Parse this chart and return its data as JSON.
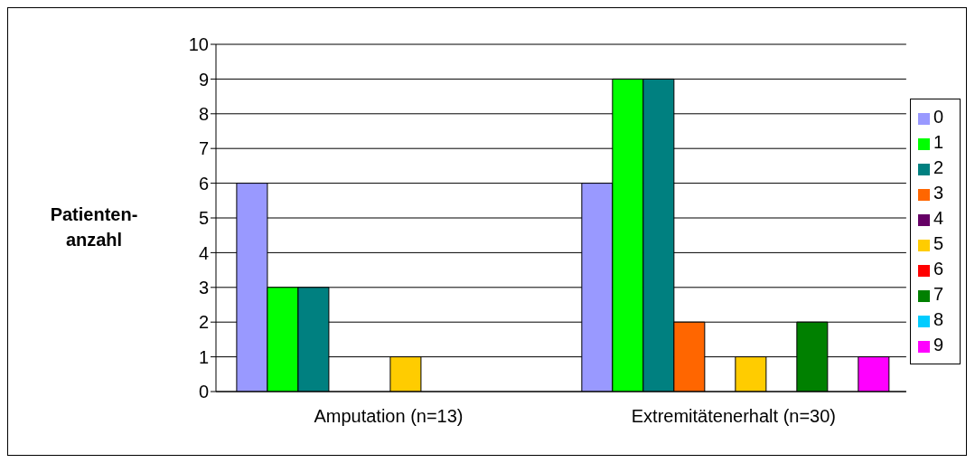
{
  "chart_data": {
    "type": "bar",
    "ylabel": "Patienten-anzahl",
    "categories": [
      "Amputation (n=13)",
      "Extremitätenerhalt (n=30)"
    ],
    "series": [
      {
        "name": "0",
        "color": "#9999ff",
        "values": [
          6,
          6
        ]
      },
      {
        "name": "1",
        "color": "#00ff00",
        "values": [
          3,
          9
        ]
      },
      {
        "name": "2",
        "color": "#008080",
        "values": [
          3,
          9
        ]
      },
      {
        "name": "3",
        "color": "#ff6600",
        "values": [
          0,
          2
        ]
      },
      {
        "name": "4",
        "color": "#660066",
        "values": [
          0,
          0
        ]
      },
      {
        "name": "5",
        "color": "#ffcc00",
        "values": [
          1,
          1
        ]
      },
      {
        "name": "6",
        "color": "#ff0000",
        "values": [
          0,
          0
        ]
      },
      {
        "name": "7",
        "color": "#008000",
        "values": [
          0,
          2
        ]
      },
      {
        "name": "8",
        "color": "#00ccff",
        "values": [
          0,
          0
        ]
      },
      {
        "name": "9",
        "color": "#ff00ff",
        "values": [
          0,
          1
        ]
      }
    ],
    "ylim": [
      0,
      10
    ],
    "yticks": [
      0,
      1,
      2,
      3,
      4,
      5,
      6,
      7,
      8,
      9,
      10
    ],
    "grid": "y",
    "legend": "right"
  }
}
